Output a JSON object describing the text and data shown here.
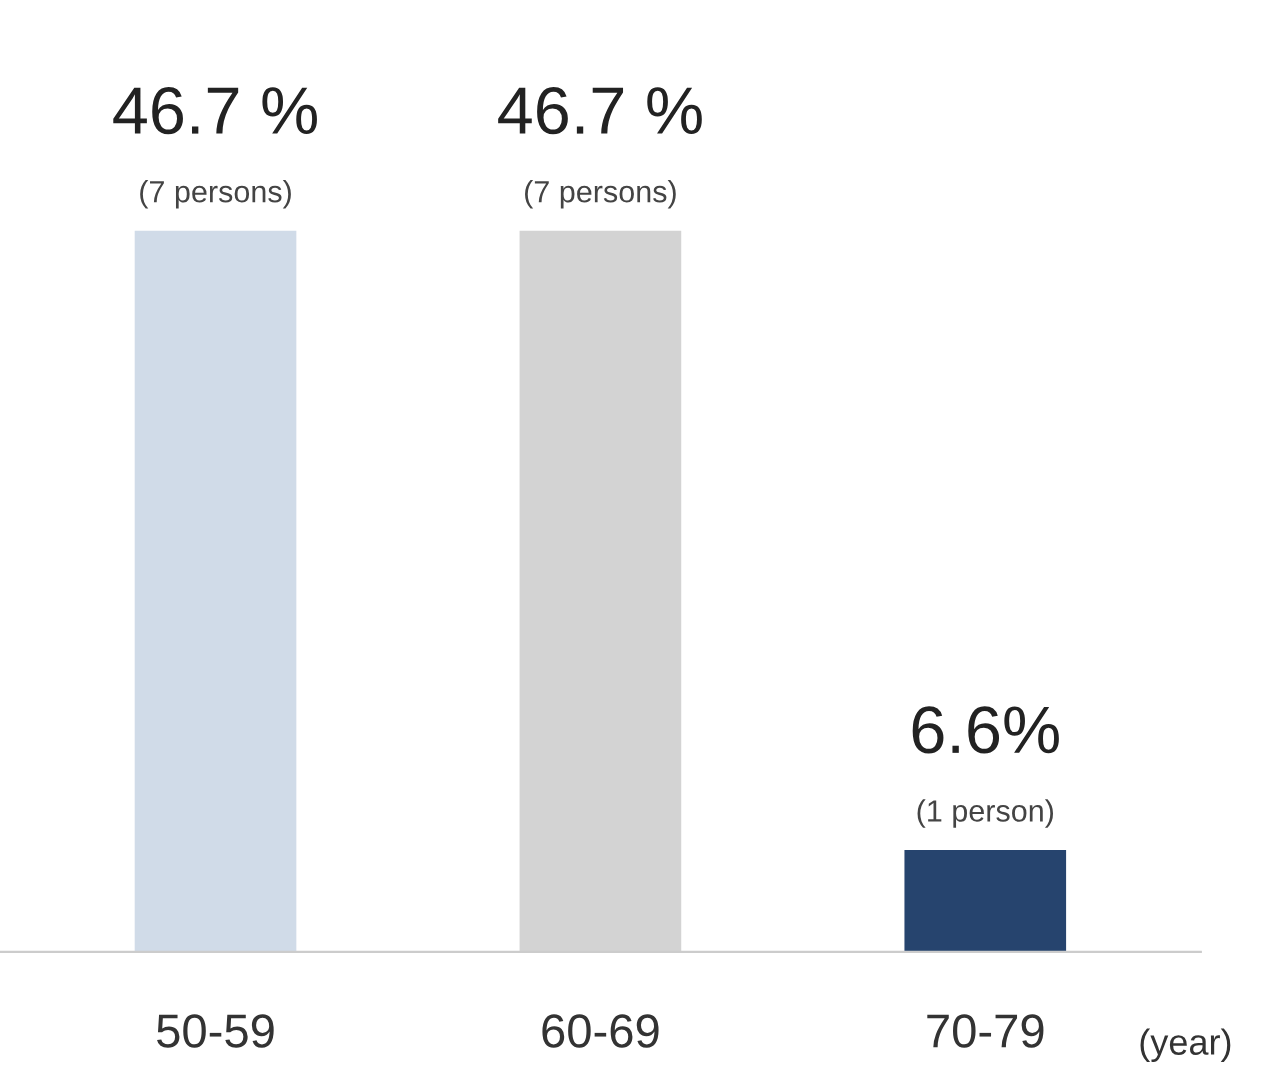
{
  "chart_data": {
    "type": "bar",
    "categories": [
      "50-59",
      "60-69",
      "70-79"
    ],
    "values": [
      46.7,
      46.7,
      6.6
    ],
    "colors": [
      "#d0dbe8",
      "#d3d3d3",
      "#26446e"
    ],
    "value_labels": [
      "46.7 %",
      "46.7 %",
      "6.6%"
    ],
    "xlabel": "(year)",
    "annotations": [
      {
        "text": "(7 persons)",
        "x": "50-59",
        "y": 46.7
      },
      {
        "text": "(7 persons)",
        "x": "60-69",
        "y": 46.7
      },
      {
        "text": "(1 person)",
        "x": "70-79",
        "y": 6.6
      }
    ],
    "grid": false,
    "legend": false
  }
}
